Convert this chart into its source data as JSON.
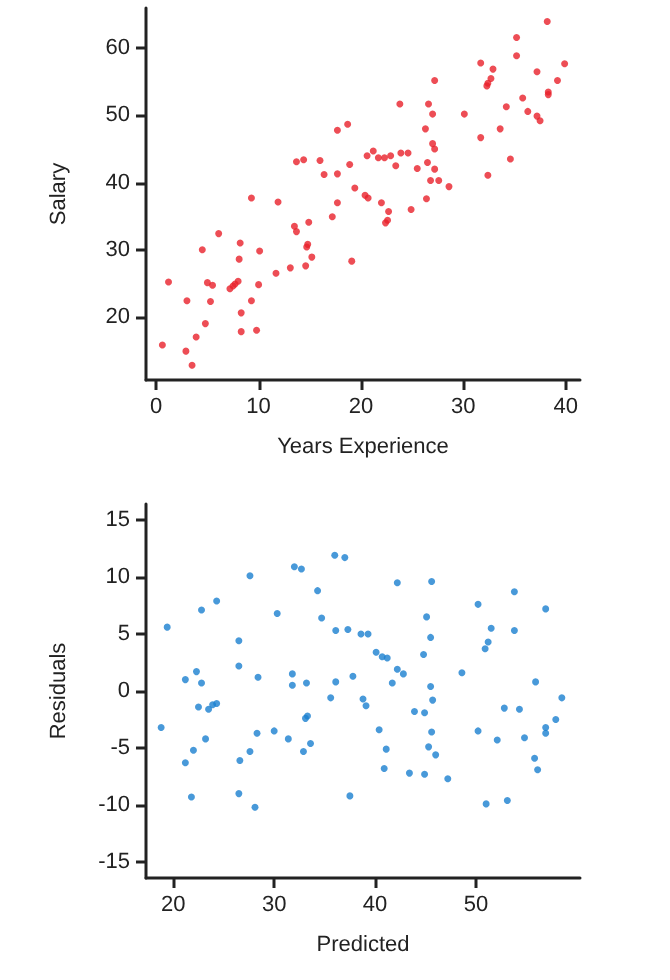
{
  "chart_data": [
    {
      "type": "scatter",
      "xlabel": "Years Experience",
      "ylabel": "Salary",
      "xlim": [
        -1,
        41.4
      ],
      "ylim": [
        10.6,
        66
      ],
      "xticks": [
        0,
        10,
        20,
        30,
        40
      ],
      "yticks": [
        20,
        30,
        40,
        50,
        60
      ],
      "marker": "circle",
      "series": [
        {
          "color": "#e8202a",
          "x": [
            38.2,
            35.2,
            35.2,
            39.9,
            31.7,
            32.9,
            32.7,
            32.4,
            32.3,
            37.2,
            39.2,
            27.2,
            35.8,
            38.3,
            38.3,
            23.8,
            26.6,
            27.0,
            30.1,
            34.2,
            36.3,
            37.2,
            37.5,
            26.3,
            33.6,
            31.7,
            18.7,
            17.7,
            27.0,
            27.2,
            21.2,
            20.6,
            21.7,
            22.3,
            22.9,
            23.9,
            24.6,
            34.6,
            13.7,
            14.4,
            16.0,
            18.9,
            23.4,
            26.5,
            25.5,
            27.2,
            32.4,
            16.4,
            17.7,
            26.8,
            27.6,
            28.6,
            19.4,
            20.4,
            20.7,
            26.4,
            9.3,
            11.9,
            17.7,
            22.0,
            22.7,
            24.9,
            17.2,
            14.9,
            13.5,
            13.7,
            22.6,
            22.4,
            6.1,
            4.5,
            8.2,
            10.1,
            8.1,
            14.8,
            14.7,
            15.2,
            14.6,
            13.1,
            11.7,
            19.1,
            1.2,
            5.0,
            5.5,
            8.0,
            7.7,
            7.5,
            7.2,
            10.0,
            3.0,
            5.3,
            9.3,
            8.3,
            4.8,
            0.6,
            3.9,
            8.3,
            9.8,
            2.9,
            3.5
          ],
          "values": [
            64.0,
            61.6,
            58.9,
            57.7,
            57.8,
            56.9,
            55.5,
            54.8,
            54.4,
            56.5,
            55.2,
            55.2,
            52.6,
            53.5,
            53.1,
            51.7,
            51.7,
            50.2,
            50.2,
            51.3,
            50.6,
            49.9,
            49.2,
            48.0,
            48.0,
            46.7,
            48.7,
            47.8,
            45.8,
            45.0,
            44.7,
            44.0,
            43.7,
            43.7,
            44.0,
            44.4,
            44.4,
            43.5,
            43.1,
            43.4,
            43.3,
            42.7,
            42.5,
            43.0,
            42.1,
            42.0,
            41.1,
            41.2,
            41.3,
            40.3,
            40.3,
            39.4,
            39.2,
            38.1,
            37.7,
            37.6,
            37.7,
            37.1,
            37.0,
            37.0,
            35.7,
            36.0,
            34.9,
            34.1,
            33.5,
            32.7,
            34.4,
            34.0,
            32.4,
            30.0,
            31.0,
            29.8,
            28.6,
            30.8,
            30.4,
            28.9,
            27.6,
            27.3,
            26.5,
            28.3,
            25.2,
            25.1,
            24.7,
            25.3,
            24.9,
            24.6,
            24.2,
            24.8,
            22.4,
            22.3,
            22.4,
            20.6,
            19.0,
            15.8,
            17.0,
            17.8,
            18.0,
            14.9,
            12.8
          ]
        }
      ]
    },
    {
      "type": "scatter",
      "xlabel": "Predicted",
      "ylabel": "Residuals",
      "xlim": [
        17.3,
        60.3
      ],
      "ylim": [
        -16.4,
        16.4
      ],
      "xticks": [
        20,
        30,
        40,
        50
      ],
      "yticks": [
        -15,
        -10,
        -5,
        0,
        5,
        10,
        15
      ],
      "marker": "circle",
      "series": [
        {
          "color": "#1a7fd0",
          "x": [
            19.4,
            22.8,
            24.3,
            27.6,
            32.0,
            32.7,
            36.0,
            37.0,
            34.3,
            30.3,
            26.5,
            34.7,
            36.1,
            37.3,
            38.6,
            39.3,
            40.1,
            40.7,
            41.2,
            42.2,
            45.6,
            45.1,
            45.5,
            44.8,
            50.2,
            53.8,
            56.9,
            51.5,
            51.2,
            50.9,
            53.8,
            21.2,
            22.3,
            22.8,
            26.5,
            28.4,
            31.8,
            31.8,
            33.2,
            36.1,
            37.8,
            41.7,
            42.2,
            42.8,
            45.5,
            48.6,
            55.9,
            22.5,
            23.5,
            23.9,
            24.3,
            35.6,
            38.8,
            39.1,
            45.7,
            43.9,
            44.9,
            33.3,
            33.1,
            52.8,
            54.3,
            58.5,
            57.9,
            18.8,
            23.2,
            22.0,
            21.2,
            21.8,
            28.3,
            30.0,
            27.6,
            26.6,
            26.5,
            28.1,
            31.4,
            32.9,
            33.6,
            37.5,
            40.4,
            41.1,
            40.9,
            43.4,
            44.9,
            45.3,
            46.0,
            45.6,
            47.2,
            50.2,
            51.0,
            53.1,
            52.1,
            54.8,
            55.8,
            56.1,
            56.9,
            56.9
          ],
          "values": [
            5.6,
            7.1,
            7.9,
            10.1,
            10.9,
            10.7,
            11.9,
            11.7,
            8.8,
            6.8,
            4.4,
            6.4,
            5.3,
            5.4,
            5.0,
            5.0,
            3.4,
            3.0,
            2.9,
            9.5,
            9.6,
            6.5,
            4.7,
            3.2,
            7.6,
            8.7,
            7.2,
            5.5,
            4.3,
            3.7,
            5.3,
            1.0,
            1.7,
            0.7,
            2.2,
            1.2,
            1.5,
            0.5,
            0.7,
            0.8,
            1.3,
            0.7,
            1.9,
            1.5,
            0.4,
            1.6,
            0.8,
            -1.4,
            -1.6,
            -1.2,
            -1.1,
            -0.6,
            -0.7,
            -1.3,
            -0.8,
            -1.8,
            -1.9,
            -2.2,
            -2.4,
            -1.5,
            -1.6,
            -0.6,
            -2.5,
            -3.2,
            -4.2,
            -5.2,
            -6.3,
            -9.3,
            -3.7,
            -3.5,
            -5.3,
            -6.1,
            -9.0,
            -10.2,
            -4.2,
            -5.3,
            -4.6,
            -9.2,
            -3.4,
            -5.1,
            -6.8,
            -7.2,
            -7.3,
            -4.9,
            -5.6,
            -3.6,
            -7.7,
            -3.5,
            -9.9,
            -9.6,
            -4.3,
            -4.1,
            -5.9,
            -6.9,
            -3.2,
            -3.7
          ]
        }
      ]
    }
  ]
}
